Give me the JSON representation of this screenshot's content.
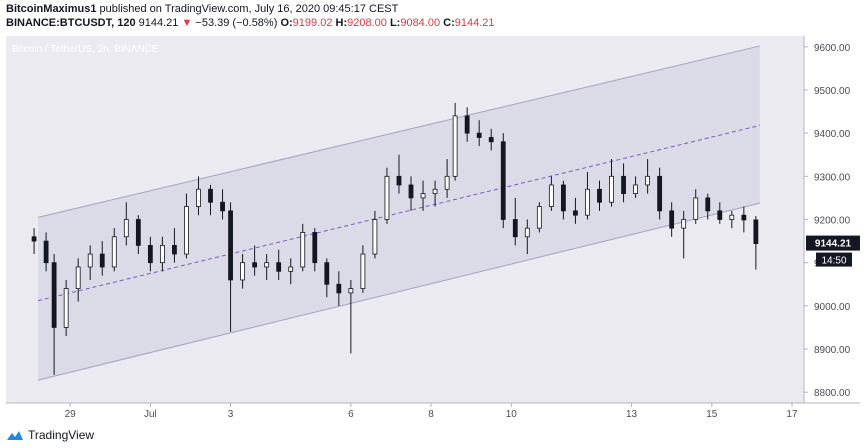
{
  "header": {
    "author": "BitcoinMaximus1",
    "published": "published on TradingView.com, July 16, 2020 09:45:17 CEST",
    "symbol": "BINANCE:BTCUSDT, 120",
    "last": "9144.21",
    "change": "−53.39 (−0.58%)",
    "o_label": "O:",
    "o_value": "9199.02",
    "h_label": "H:",
    "h_value": "9208.00",
    "l_label": "L:",
    "l_value": "9084.00",
    "c_label": "C:",
    "c_value": "9144.21",
    "down_arrow": "▼"
  },
  "footer": {
    "brand": "TradingView"
  },
  "chart_data": {
    "type": "candlestick",
    "title": "Bitcoin / TetherUS, 2h, BINANCE",
    "y_ticks": [
      8800,
      8900,
      9000,
      9100,
      9200,
      9300,
      9400,
      9500,
      9600
    ],
    "y_tick_labels": [
      "8800.00",
      "8900.00",
      "9000.00",
      "9100.00",
      "9200.00",
      "9300.00",
      "9400.00",
      "9500.00",
      "9600.00"
    ],
    "ylim": [
      8775,
      9625
    ],
    "x_tick_labels": [
      {
        "label": "29",
        "day": 1
      },
      {
        "label": "Jul",
        "day": 3
      },
      {
        "label": "3",
        "day": 5
      },
      {
        "label": "6",
        "day": 8
      },
      {
        "label": "8",
        "day": 10
      },
      {
        "label": "10",
        "day": 12
      },
      {
        "label": "13",
        "day": 15
      },
      {
        "label": "15",
        "day": 17
      },
      {
        "label": "17",
        "day": 19
      }
    ],
    "x_range_days": [
      -0.6,
      19.3
    ],
    "last_price_label": "9144.21",
    "countdown_label": "14:50",
    "colors": {
      "up": "#ffffff",
      "down": "#131722",
      "channel_fill": "#d5d4e3",
      "channel_line": "#a5a0c4",
      "midline": "#7e57c2",
      "price_tag": "#131722"
    },
    "channel": {
      "start_day": 0.2,
      "end_day": 18.2,
      "upper": [
        9205,
        9602
      ],
      "mid": [
        9012,
        9418
      ],
      "lower": [
        8828,
        9238
      ]
    },
    "series": [
      {
        "name": "BTCUSDT",
        "points": [
          {
            "d": 0.1,
            "o": 9160,
            "h": 9180,
            "l": 9120,
            "c": 9150
          },
          {
            "d": 0.4,
            "o": 9150,
            "h": 9170,
            "l": 9080,
            "c": 9100
          },
          {
            "d": 0.6,
            "o": 9100,
            "h": 9120,
            "l": 8840,
            "c": 8950
          },
          {
            "d": 0.9,
            "o": 8950,
            "h": 9060,
            "l": 8930,
            "c": 9040
          },
          {
            "d": 1.2,
            "o": 9040,
            "h": 9110,
            "l": 9010,
            "c": 9090
          },
          {
            "d": 1.5,
            "o": 9090,
            "h": 9140,
            "l": 9060,
            "c": 9120
          },
          {
            "d": 1.8,
            "o": 9120,
            "h": 9150,
            "l": 9070,
            "c": 9090
          },
          {
            "d": 2.1,
            "o": 9090,
            "h": 9180,
            "l": 9080,
            "c": 9160
          },
          {
            "d": 2.4,
            "o": 9160,
            "h": 9240,
            "l": 9140,
            "c": 9200
          },
          {
            "d": 2.7,
            "o": 9200,
            "h": 9210,
            "l": 9120,
            "c": 9140
          },
          {
            "d": 3.0,
            "o": 9140,
            "h": 9160,
            "l": 9080,
            "c": 9100
          },
          {
            "d": 3.3,
            "o": 9100,
            "h": 9160,
            "l": 9080,
            "c": 9140
          },
          {
            "d": 3.6,
            "o": 9140,
            "h": 9180,
            "l": 9100,
            "c": 9120
          },
          {
            "d": 3.9,
            "o": 9120,
            "h": 9260,
            "l": 9110,
            "c": 9230
          },
          {
            "d": 4.2,
            "o": 9230,
            "h": 9300,
            "l": 9210,
            "c": 9270
          },
          {
            "d": 4.5,
            "o": 9270,
            "h": 9280,
            "l": 9210,
            "c": 9240
          },
          {
            "d": 4.8,
            "o": 9240,
            "h": 9270,
            "l": 9200,
            "c": 9220
          },
          {
            "d": 5.0,
            "o": 9220,
            "h": 9240,
            "l": 8940,
            "c": 9060
          },
          {
            "d": 5.3,
            "o": 9060,
            "h": 9120,
            "l": 9040,
            "c": 9100
          },
          {
            "d": 5.6,
            "o": 9100,
            "h": 9140,
            "l": 9070,
            "c": 9090
          },
          {
            "d": 5.9,
            "o": 9090,
            "h": 9120,
            "l": 9060,
            "c": 9100
          },
          {
            "d": 6.2,
            "o": 9100,
            "h": 9130,
            "l": 9060,
            "c": 9080
          },
          {
            "d": 6.5,
            "o": 9080,
            "h": 9110,
            "l": 9050,
            "c": 9090
          },
          {
            "d": 6.8,
            "o": 9090,
            "h": 9190,
            "l": 9080,
            "c": 9170
          },
          {
            "d": 7.1,
            "o": 9170,
            "h": 9180,
            "l": 9080,
            "c": 9100
          },
          {
            "d": 7.4,
            "o": 9100,
            "h": 9110,
            "l": 9020,
            "c": 9050
          },
          {
            "d": 7.7,
            "o": 9050,
            "h": 9080,
            "l": 9000,
            "c": 9030
          },
          {
            "d": 8.0,
            "o": 9030,
            "h": 9060,
            "l": 8890,
            "c": 9040
          },
          {
            "d": 8.3,
            "o": 9040,
            "h": 9140,
            "l": 9030,
            "c": 9120
          },
          {
            "d": 8.6,
            "o": 9120,
            "h": 9220,
            "l": 9110,
            "c": 9200
          },
          {
            "d": 8.9,
            "o": 9200,
            "h": 9320,
            "l": 9190,
            "c": 9300
          },
          {
            "d": 9.2,
            "o": 9300,
            "h": 9350,
            "l": 9260,
            "c": 9280
          },
          {
            "d": 9.5,
            "o": 9280,
            "h": 9300,
            "l": 9220,
            "c": 9250
          },
          {
            "d": 9.8,
            "o": 9250,
            "h": 9290,
            "l": 9220,
            "c": 9260
          },
          {
            "d": 10.1,
            "o": 9260,
            "h": 9290,
            "l": 9230,
            "c": 9270
          },
          {
            "d": 10.4,
            "o": 9270,
            "h": 9340,
            "l": 9250,
            "c": 9300
          },
          {
            "d": 10.6,
            "o": 9300,
            "h": 9470,
            "l": 9290,
            "c": 9440
          },
          {
            "d": 10.9,
            "o": 9440,
            "h": 9460,
            "l": 9380,
            "c": 9400
          },
          {
            "d": 11.2,
            "o": 9400,
            "h": 9430,
            "l": 9370,
            "c": 9390
          },
          {
            "d": 11.5,
            "o": 9390,
            "h": 9410,
            "l": 9360,
            "c": 9380
          },
          {
            "d": 11.8,
            "o": 9380,
            "h": 9400,
            "l": 9180,
            "c": 9200
          },
          {
            "d": 12.1,
            "o": 9200,
            "h": 9250,
            "l": 9140,
            "c": 9160
          },
          {
            "d": 12.4,
            "o": 9160,
            "h": 9200,
            "l": 9120,
            "c": 9180
          },
          {
            "d": 12.7,
            "o": 9180,
            "h": 9240,
            "l": 9170,
            "c": 9230
          },
          {
            "d": 13.0,
            "o": 9230,
            "h": 9300,
            "l": 9220,
            "c": 9280
          },
          {
            "d": 13.3,
            "o": 9280,
            "h": 9290,
            "l": 9200,
            "c": 9220
          },
          {
            "d": 13.6,
            "o": 9220,
            "h": 9250,
            "l": 9190,
            "c": 9210
          },
          {
            "d": 13.9,
            "o": 9210,
            "h": 9310,
            "l": 9200,
            "c": 9270
          },
          {
            "d": 14.2,
            "o": 9270,
            "h": 9290,
            "l": 9220,
            "c": 9240
          },
          {
            "d": 14.5,
            "o": 9240,
            "h": 9340,
            "l": 9230,
            "c": 9300
          },
          {
            "d": 14.8,
            "o": 9300,
            "h": 9330,
            "l": 9240,
            "c": 9260
          },
          {
            "d": 15.1,
            "o": 9260,
            "h": 9300,
            "l": 9250,
            "c": 9280
          },
          {
            "d": 15.4,
            "o": 9280,
            "h": 9340,
            "l": 9260,
            "c": 9300
          },
          {
            "d": 15.7,
            "o": 9300,
            "h": 9320,
            "l": 9200,
            "c": 9220
          },
          {
            "d": 16.0,
            "o": 9220,
            "h": 9240,
            "l": 9160,
            "c": 9180
          },
          {
            "d": 16.3,
            "o": 9180,
            "h": 9220,
            "l": 9110,
            "c": 9200
          },
          {
            "d": 16.6,
            "o": 9200,
            "h": 9270,
            "l": 9190,
            "c": 9250
          },
          {
            "d": 16.9,
            "o": 9250,
            "h": 9260,
            "l": 9200,
            "c": 9220
          },
          {
            "d": 17.2,
            "o": 9220,
            "h": 9240,
            "l": 9190,
            "c": 9200
          },
          {
            "d": 17.5,
            "o": 9200,
            "h": 9220,
            "l": 9180,
            "c": 9210
          },
          {
            "d": 17.8,
            "o": 9210,
            "h": 9230,
            "l": 9170,
            "c": 9199
          },
          {
            "d": 18.1,
            "o": 9199.02,
            "h": 9208,
            "l": 9084,
            "c": 9144.21
          }
        ]
      }
    ]
  }
}
